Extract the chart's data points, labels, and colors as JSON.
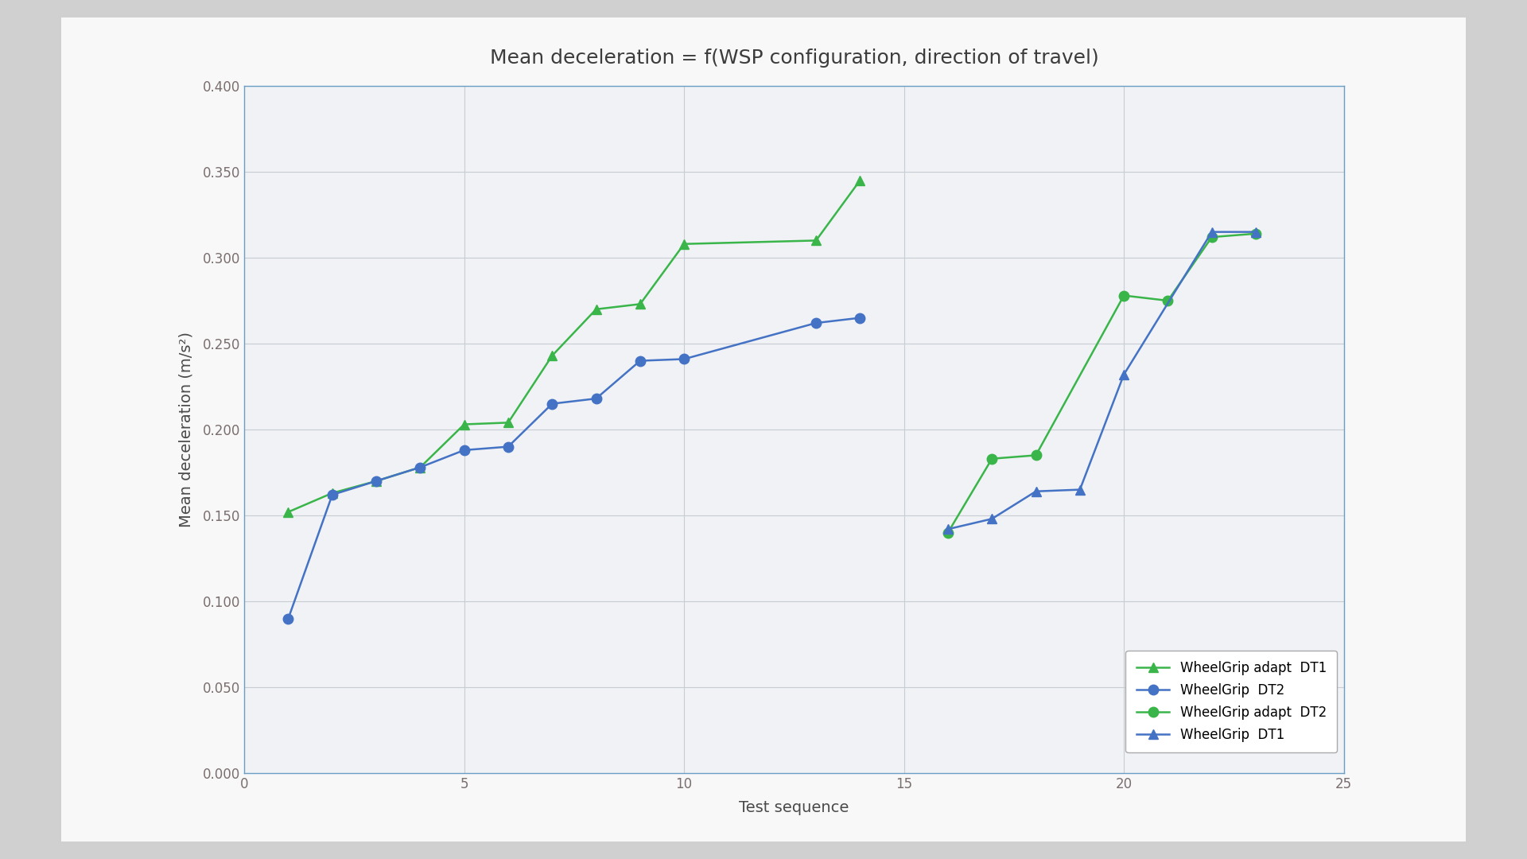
{
  "title": "Mean deceleration = f(WSP configuration, direction of travel)",
  "xlabel": "Test sequence",
  "ylabel": "Mean deceleration (m/s²)",
  "xlim": [
    0,
    25
  ],
  "ylim": [
    0.0,
    0.4
  ],
  "yticks": [
    0.0,
    0.05,
    0.1,
    0.15,
    0.2,
    0.25,
    0.3,
    0.35,
    0.4
  ],
  "xticks": [
    0,
    5,
    10,
    15,
    20,
    25
  ],
  "outer_bg_color": "#d0d0d0",
  "card_bg_color": "#f8f8f8",
  "plot_bg_color": "#f0f2f5",
  "series": [
    {
      "label": "WheelGrip adapt  DT1",
      "color": "#3ab54a",
      "marker": "^",
      "markersize": 9,
      "x": [
        1,
        2,
        3,
        4,
        5,
        6,
        7,
        8,
        9,
        10,
        13,
        14
      ],
      "y": [
        0.152,
        0.163,
        0.17,
        0.178,
        0.203,
        0.204,
        0.243,
        0.27,
        0.273,
        0.308,
        0.31,
        0.345
      ]
    },
    {
      "label": "WheelGrip  DT2",
      "color": "#4472c4",
      "marker": "o",
      "markersize": 9,
      "x": [
        1,
        2,
        3,
        4,
        5,
        6,
        7,
        8,
        9,
        10,
        13,
        14
      ],
      "y": [
        0.09,
        0.162,
        0.17,
        0.178,
        0.188,
        0.19,
        0.215,
        0.218,
        0.24,
        0.241,
        0.262,
        0.265
      ]
    },
    {
      "label": "WheelGrip adapt  DT2",
      "color": "#3ab54a",
      "marker": "o",
      "markersize": 9,
      "x": [
        16,
        17,
        18,
        20,
        21,
        22,
        23
      ],
      "y": [
        0.14,
        0.183,
        0.185,
        0.278,
        0.275,
        0.312,
        0.314
      ]
    },
    {
      "label": "WheelGrip  DT1",
      "color": "#4472c4",
      "marker": "^",
      "markersize": 9,
      "x": [
        16,
        17,
        18,
        19,
        20,
        22,
        23
      ],
      "y": [
        0.142,
        0.148,
        0.164,
        0.165,
        0.232,
        0.315,
        0.315
      ]
    }
  ],
  "title_fontsize": 18,
  "axis_label_fontsize": 14,
  "tick_fontsize": 12,
  "legend_fontsize": 12,
  "line_width": 1.8,
  "grid_color": "#c8cdd4",
  "spine_color": "#6a9ec5",
  "tick_color": "#7a6e6e",
  "title_color": "#3c3c3c",
  "axis_label_color": "#4a4a4a"
}
